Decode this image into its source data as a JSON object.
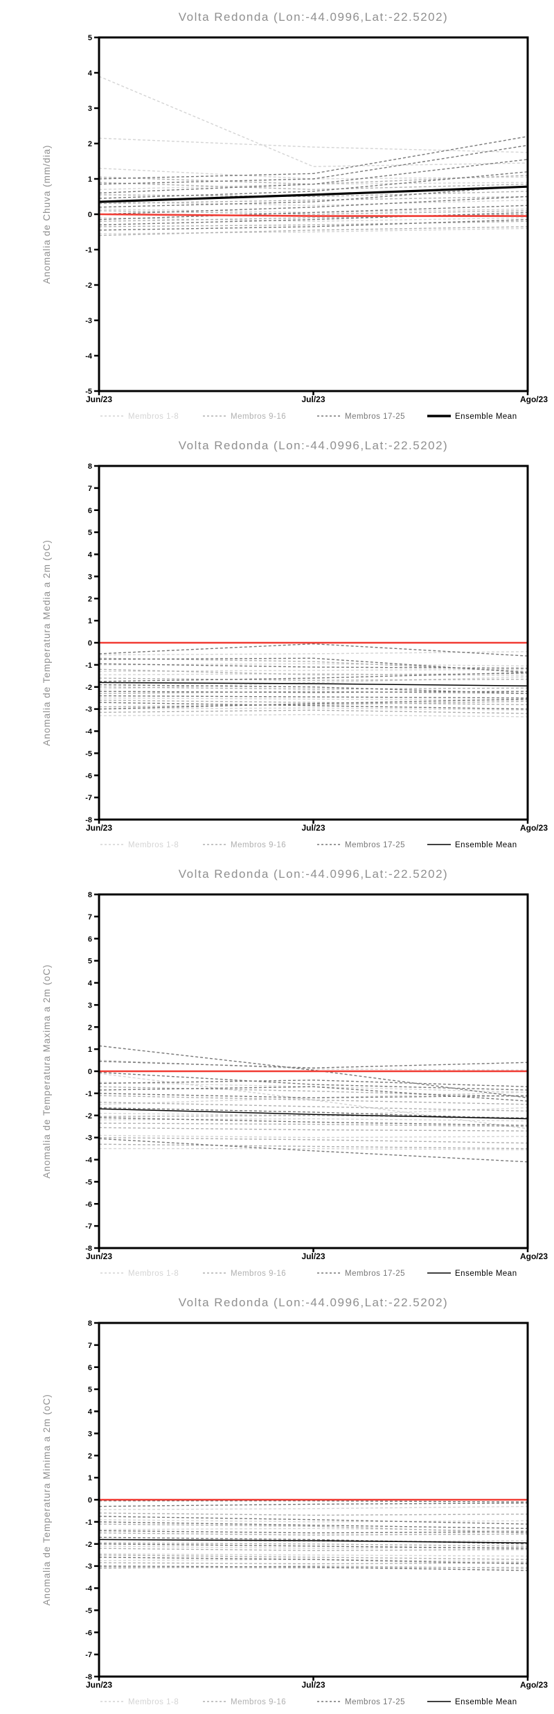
{
  "page_title": "Volta Redonda ensemble anomaly forecasts",
  "colors": {
    "background": "#ffffff",
    "frame": "#000000",
    "title_text": "#8f8f8f",
    "axis_label_text": "#8f8f8f",
    "tick_text": "#000000",
    "group1": "#d4d4d4",
    "group2": "#b0b0b0",
    "group3": "#777777",
    "mean": "#000000",
    "reference": "#f13b33"
  },
  "legend": {
    "items": [
      {
        "label": "Membros 1-8",
        "group": "group1",
        "style": "dashed"
      },
      {
        "label": "Membros 9-16",
        "group": "group2",
        "style": "dashed"
      },
      {
        "label": "Membros 17-25",
        "group": "group3",
        "style": "dashed"
      },
      {
        "label": "Ensemble Mean",
        "group": "mean",
        "style": "solid"
      }
    ]
  },
  "chart_data": [
    {
      "type": "line",
      "title": "Volta Redonda (Lon:-44.0996,Lat:-22.5202)",
      "ylabel": "Anomalia de Chuva (mm/dia)",
      "xlabel": "",
      "x_categories": [
        "Jun/23",
        "Jul/23",
        "Ago/23"
      ],
      "ylim": [
        -5,
        5
      ],
      "ytick_step": 1,
      "grid": false,
      "legend_position": "bottom",
      "mean_thick": true,
      "ensemble_mean": [
        0.35,
        0.55,
        0.78
      ],
      "reference_line": [
        0.0,
        -0.05,
        -0.05
      ],
      "members": [
        {
          "group": "group1",
          "values": [
            3.9,
            1.35,
            1.45
          ]
        },
        {
          "group": "group1",
          "values": [
            2.15,
            1.9,
            1.75
          ]
        },
        {
          "group": "group1",
          "values": [
            1.3,
            1.0,
            1.05
          ]
        },
        {
          "group": "group1",
          "values": [
            0.7,
            0.85,
            0.9
          ]
        },
        {
          "group": "group1",
          "values": [
            0.35,
            0.25,
            0.4
          ]
        },
        {
          "group": "group1",
          "values": [
            0.15,
            0.05,
            0.15
          ]
        },
        {
          "group": "group1",
          "values": [
            -0.1,
            -0.2,
            -0.1
          ]
        },
        {
          "group": "group1",
          "values": [
            -0.55,
            -0.5,
            -0.4
          ]
        },
        {
          "group": "group2",
          "values": [
            1.05,
            0.85,
            1.1
          ]
        },
        {
          "group": "group2",
          "values": [
            0.9,
            0.7,
            0.85
          ]
        },
        {
          "group": "group2",
          "values": [
            0.55,
            0.5,
            0.65
          ]
        },
        {
          "group": "group2",
          "values": [
            0.3,
            0.4,
            0.5
          ]
        },
        {
          "group": "group2",
          "values": [
            0.1,
            0.0,
            0.1
          ]
        },
        {
          "group": "group2",
          "values": [
            -0.2,
            -0.1,
            0.0
          ]
        },
        {
          "group": "group2",
          "values": [
            -0.35,
            -0.3,
            -0.2
          ]
        },
        {
          "group": "group2",
          "values": [
            -0.6,
            -0.45,
            -0.35
          ]
        },
        {
          "group": "group3",
          "values": [
            1.0,
            1.15,
            2.2
          ]
        },
        {
          "group": "group3",
          "values": [
            0.85,
            1.0,
            1.95
          ]
        },
        {
          "group": "group3",
          "values": [
            0.6,
            0.85,
            1.55
          ]
        },
        {
          "group": "group3",
          "values": [
            0.45,
            0.65,
            1.2
          ]
        },
        {
          "group": "group3",
          "values": [
            0.2,
            0.35,
            0.8
          ]
        },
        {
          "group": "group3",
          "values": [
            0.0,
            0.2,
            0.5
          ]
        },
        {
          "group": "group3",
          "values": [
            -0.15,
            0.05,
            0.25
          ]
        },
        {
          "group": "group3",
          "values": [
            -0.3,
            -0.15,
            0.05
          ]
        },
        {
          "group": "group3",
          "values": [
            -0.45,
            -0.35,
            -0.15
          ]
        }
      ]
    },
    {
      "type": "line",
      "title": "Volta Redonda (Lon:-44.0996,Lat:-22.5202)",
      "ylabel": "Anomalia de Temperatura Media a 2m (oC)",
      "xlabel": "",
      "x_categories": [
        "Jun/23",
        "Jul/23",
        "Ago/23"
      ],
      "ylim": [
        -8,
        8
      ],
      "ytick_step": 1,
      "grid": false,
      "legend_position": "bottom",
      "mean_thick": false,
      "ensemble_mean": [
        -1.8,
        -1.85,
        -1.95
      ],
      "reference_line": [
        0.0,
        0.0,
        0.0
      ],
      "members": [
        {
          "group": "group1",
          "values": [
            -0.55,
            -0.5,
            -0.4
          ]
        },
        {
          "group": "group1",
          "values": [
            -1.0,
            -0.95,
            -1.05
          ]
        },
        {
          "group": "group1",
          "values": [
            -1.45,
            -1.4,
            -1.5
          ]
        },
        {
          "group": "group1",
          "values": [
            -2.1,
            -1.8,
            -1.55
          ]
        },
        {
          "group": "group1",
          "values": [
            -2.5,
            -2.55,
            -2.6
          ]
        },
        {
          "group": "group1",
          "values": [
            -3.0,
            -2.95,
            -3.05
          ]
        },
        {
          "group": "group1",
          "values": [
            -3.3,
            -3.25,
            -3.35
          ]
        },
        {
          "group": "group1",
          "values": [
            -1.3,
            -1.25,
            -1.2
          ]
        },
        {
          "group": "group2",
          "values": [
            -0.7,
            -0.85,
            -1.3
          ]
        },
        {
          "group": "group2",
          "values": [
            -1.2,
            -1.45,
            -1.4
          ]
        },
        {
          "group": "group2",
          "values": [
            -1.6,
            -1.7,
            -1.65
          ]
        },
        {
          "group": "group2",
          "values": [
            -2.0,
            -2.1,
            -2.05
          ]
        },
        {
          "group": "group2",
          "values": [
            -2.3,
            -2.2,
            -2.3
          ]
        },
        {
          "group": "group2",
          "values": [
            -2.6,
            -2.7,
            -2.8
          ]
        },
        {
          "group": "group2",
          "values": [
            -2.9,
            -2.8,
            -2.65
          ]
        },
        {
          "group": "group2",
          "values": [
            -3.15,
            -3.05,
            -3.2
          ]
        },
        {
          "group": "group3",
          "values": [
            -0.5,
            -0.05,
            -0.6
          ]
        },
        {
          "group": "group3",
          "values": [
            -0.75,
            -0.7,
            -1.35
          ]
        },
        {
          "group": "group3",
          "values": [
            -0.95,
            -1.1,
            -1.15
          ]
        },
        {
          "group": "group3",
          "values": [
            -1.75,
            -1.6,
            -1.35
          ]
        },
        {
          "group": "group3",
          "values": [
            -1.9,
            -2.0,
            -2.3
          ]
        },
        {
          "group": "group3",
          "values": [
            -2.2,
            -2.25,
            -2.2
          ]
        },
        {
          "group": "group3",
          "values": [
            -2.4,
            -2.45,
            -2.5
          ]
        },
        {
          "group": "group3",
          "values": [
            -2.7,
            -2.85,
            -3.0
          ]
        },
        {
          "group": "group3",
          "values": [
            -3.0,
            -2.75,
            -2.55
          ]
        }
      ]
    },
    {
      "type": "line",
      "title": "Volta Redonda (Lon:-44.0996,Lat:-22.5202)",
      "ylabel": "Anomalia de Temperatura Maxima a 2m (oC)",
      "xlabel": "",
      "x_categories": [
        "Jun/23",
        "Jul/23",
        "Ago/23"
      ],
      "ylim": [
        -8,
        8
      ],
      "ytick_step": 1,
      "grid": false,
      "legend_position": "bottom",
      "mean_thick": false,
      "ensemble_mean": [
        -1.7,
        -1.95,
        -2.15
      ],
      "reference_line": [
        0.0,
        0.0,
        0.0
      ],
      "members": [
        {
          "group": "group1",
          "values": [
            -0.1,
            -1.3,
            -2.6
          ]
        },
        {
          "group": "group1",
          "values": [
            0.5,
            0.1,
            0.05
          ]
        },
        {
          "group": "group1",
          "values": [
            -0.5,
            -0.7,
            -0.95
          ]
        },
        {
          "group": "group1",
          "values": [
            -1.5,
            -1.2,
            -0.95
          ]
        },
        {
          "group": "group1",
          "values": [
            -1.9,
            -2.0,
            -1.65
          ]
        },
        {
          "group": "group1",
          "values": [
            -2.2,
            -2.15,
            -2.25
          ]
        },
        {
          "group": "group1",
          "values": [
            -2.9,
            -3.0,
            -2.95
          ]
        },
        {
          "group": "group1",
          "values": [
            -3.5,
            -3.5,
            -3.55
          ]
        },
        {
          "group": "group2",
          "values": [
            -0.7,
            -0.9,
            -1.15
          ]
        },
        {
          "group": "group2",
          "values": [
            -1.1,
            -1.3,
            -1.5
          ]
        },
        {
          "group": "group2",
          "values": [
            -1.4,
            -1.6,
            -1.8
          ]
        },
        {
          "group": "group2",
          "values": [
            -2.05,
            -2.0,
            -2.1
          ]
        },
        {
          "group": "group2",
          "values": [
            -2.35,
            -2.4,
            -2.5
          ]
        },
        {
          "group": "group2",
          "values": [
            -2.55,
            -2.65,
            -2.7
          ]
        },
        {
          "group": "group2",
          "values": [
            -3.0,
            -3.1,
            -3.25
          ]
        },
        {
          "group": "group2",
          "values": [
            -3.3,
            -3.4,
            -3.5
          ]
        },
        {
          "group": "group3",
          "values": [
            1.15,
            0.05,
            -1.2
          ]
        },
        {
          "group": "group3",
          "values": [
            0.45,
            0.15,
            0.4
          ]
        },
        {
          "group": "group3",
          "values": [
            -0.05,
            -0.6,
            -0.85
          ]
        },
        {
          "group": "group3",
          "values": [
            -0.55,
            -0.4,
            -0.7
          ]
        },
        {
          "group": "group3",
          "values": [
            -0.85,
            -0.7,
            -1.35
          ]
        },
        {
          "group": "group3",
          "values": [
            -1.0,
            -1.2,
            -1.1
          ]
        },
        {
          "group": "group3",
          "values": [
            -1.65,
            -1.85,
            -2.15
          ]
        },
        {
          "group": "group3",
          "values": [
            -2.1,
            -2.3,
            -2.45
          ]
        },
        {
          "group": "group3",
          "values": [
            -3.05,
            -3.6,
            -4.1
          ]
        }
      ]
    },
    {
      "type": "line",
      "title": "Volta Redonda (Lon:-44.0996,Lat:-22.5202)",
      "ylabel": "Anomalia de Temperatura Minima a 2m (oC)",
      "xlabel": "",
      "x_categories": [
        "Jun/23",
        "Jul/23",
        "Ago/23"
      ],
      "ylim": [
        -8,
        8
      ],
      "ytick_step": 1,
      "grid": false,
      "legend_position": "bottom",
      "mean_thick": false,
      "ensemble_mean": [
        -1.8,
        -1.85,
        -1.95
      ],
      "reference_line": [
        0.0,
        0.0,
        0.0
      ],
      "members": [
        {
          "group": "group1",
          "values": [
            -0.45,
            -0.4,
            -0.3
          ]
        },
        {
          "group": "group1",
          "values": [
            -0.9,
            -1.0,
            -0.95
          ]
        },
        {
          "group": "group1",
          "values": [
            -1.35,
            -1.3,
            -1.4
          ]
        },
        {
          "group": "group1",
          "values": [
            -1.8,
            -1.9,
            -1.85
          ]
        },
        {
          "group": "group1",
          "values": [
            -2.1,
            -2.2,
            -2.15
          ]
        },
        {
          "group": "group1",
          "values": [
            -2.45,
            -2.5,
            -2.55
          ]
        },
        {
          "group": "group1",
          "values": [
            -2.75,
            -2.7,
            -2.8
          ]
        },
        {
          "group": "group1",
          "values": [
            -3.05,
            -3.1,
            -3.05
          ]
        },
        {
          "group": "group2",
          "values": [
            -0.6,
            -0.7,
            -0.65
          ]
        },
        {
          "group": "group2",
          "values": [
            -1.1,
            -1.2,
            -1.5
          ]
        },
        {
          "group": "group2",
          "values": [
            -1.5,
            -1.6,
            -1.55
          ]
        },
        {
          "group": "group2",
          "values": [
            -1.95,
            -2.0,
            -2.1
          ]
        },
        {
          "group": "group2",
          "values": [
            -2.2,
            -2.3,
            -2.25
          ]
        },
        {
          "group": "group2",
          "values": [
            -2.5,
            -2.6,
            -2.7
          ]
        },
        {
          "group": "group2",
          "values": [
            -2.85,
            -2.9,
            -2.85
          ]
        },
        {
          "group": "group2",
          "values": [
            -3.1,
            -3.0,
            -3.1
          ]
        },
        {
          "group": "group3",
          "values": [
            -0.05,
            -0.05,
            -0.1
          ]
        },
        {
          "group": "group3",
          "values": [
            -0.3,
            -0.2,
            -0.15
          ]
        },
        {
          "group": "group3",
          "values": [
            -0.75,
            -0.9,
            -1.1
          ]
        },
        {
          "group": "group3",
          "values": [
            -1.0,
            -1.15,
            -1.3
          ]
        },
        {
          "group": "group3",
          "values": [
            -1.4,
            -1.5,
            -1.45
          ]
        },
        {
          "group": "group3",
          "values": [
            -1.7,
            -1.8,
            -2.0
          ]
        },
        {
          "group": "group3",
          "values": [
            -2.0,
            -2.1,
            -2.2
          ]
        },
        {
          "group": "group3",
          "values": [
            -2.6,
            -2.7,
            -2.9
          ]
        },
        {
          "group": "group3",
          "values": [
            -3.0,
            -3.05,
            -3.2
          ]
        }
      ]
    }
  ]
}
